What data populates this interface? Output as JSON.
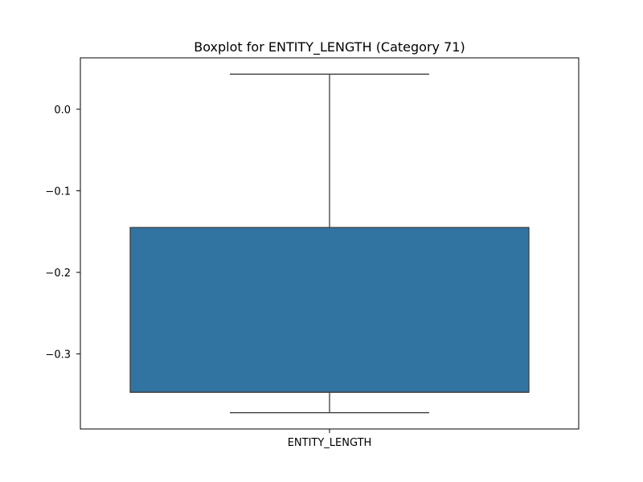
{
  "chart_data": {
    "type": "boxplot",
    "title": "Boxplot for ENTITY_LENGTH (Category 71)",
    "xlabel": "",
    "ylabel": "",
    "categories": [
      "ENTITY_LENGTH"
    ],
    "boxes": [
      {
        "category": "ENTITY_LENGTH",
        "whisker_low": -0.372,
        "q1": -0.347,
        "median": -0.347,
        "q3": -0.145,
        "whisker_high": 0.043
      }
    ],
    "ylim": [
      -0.392,
      0.063
    ],
    "yticks": [
      0.0,
      -0.1,
      -0.2,
      -0.3
    ],
    "ytick_labels": [
      "0.0",
      "−0.1",
      "−0.2",
      "−0.3"
    ],
    "grid": false,
    "colors": {
      "box_fill": "#3274a1",
      "lines": "#3f3f3f",
      "axes": "#000000"
    }
  }
}
